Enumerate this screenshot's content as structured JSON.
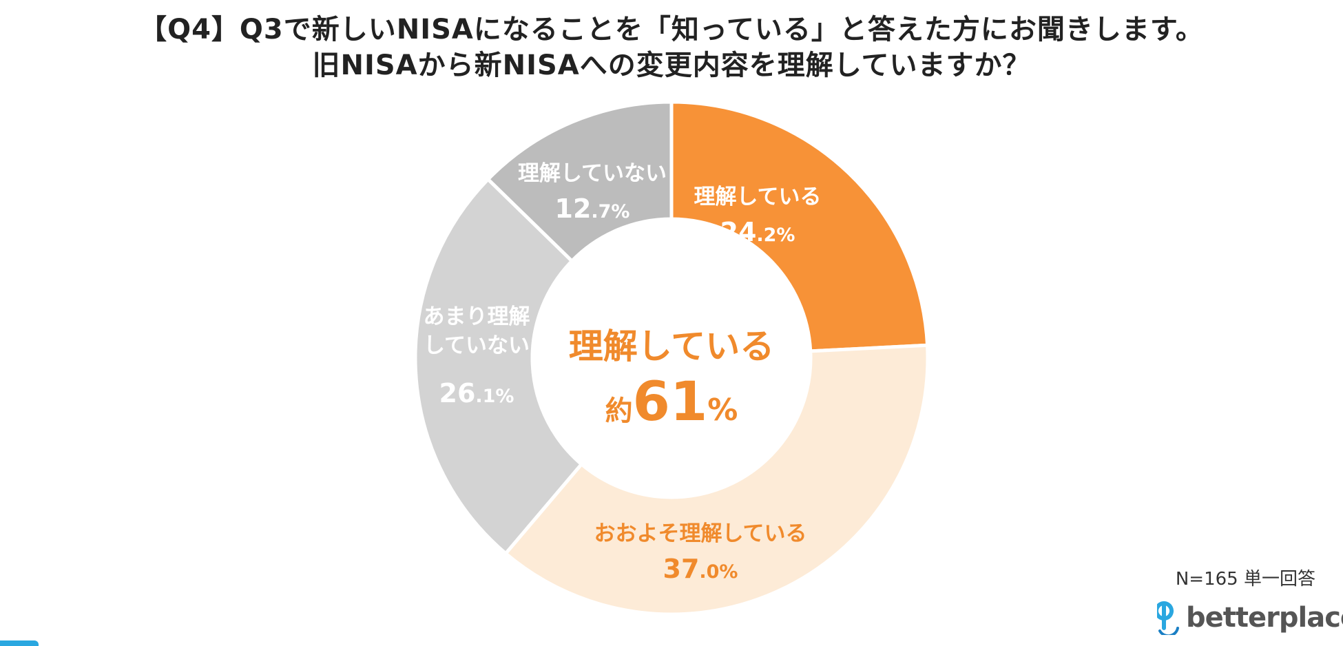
{
  "title_line1": "【Q4】Q3で新しいNISAになることを「知っている」と答えた方にお聞きします。",
  "title_line2": "旧NISAから新NISAへの変更内容を理解していますか？",
  "center_label": {
    "line1": "理解している",
    "prefix": "約",
    "value": "61",
    "unit": "%"
  },
  "note": "N=165 単一回答",
  "brand": "betterplace",
  "colors": {
    "orange": "#f79237",
    "light_orange": "#fdebd7",
    "light_gray": "#d3d3d3",
    "gray": "#bcbcbc",
    "title": "#222222",
    "brand_blue": "#2aa7e0"
  },
  "chart_data": {
    "type": "pie",
    "donut": true,
    "title": "【Q4】Q3で新しいNISAになることを「知っている」と答えた方にお聞きします。 旧NISAから新NISAへの変更内容を理解していますか？",
    "categories": [
      "理解している",
      "おおよそ理解している",
      "あまり理解していない",
      "理解していない"
    ],
    "values": [
      24.2,
      37.0,
      26.1,
      12.7
    ],
    "value_labels": [
      {
        "int": "24",
        "dec": ".2%"
      },
      {
        "int": "37",
        "dec": ".0%"
      },
      {
        "int": "26",
        "dec": ".1%"
      },
      {
        "int": "12",
        "dec": ".7%"
      }
    ],
    "label_lines": [
      [
        "理解している"
      ],
      [
        "おおよそ理解している"
      ],
      [
        "あまり理解",
        "していない"
      ],
      [
        "理解していない"
      ]
    ],
    "colors": [
      "#f79237",
      "#fdebd7",
      "#d3d3d3",
      "#bcbcbc"
    ],
    "label_colors": [
      "#ffffff",
      "#f08a2c",
      "#ffffff",
      "#ffffff"
    ]
  }
}
